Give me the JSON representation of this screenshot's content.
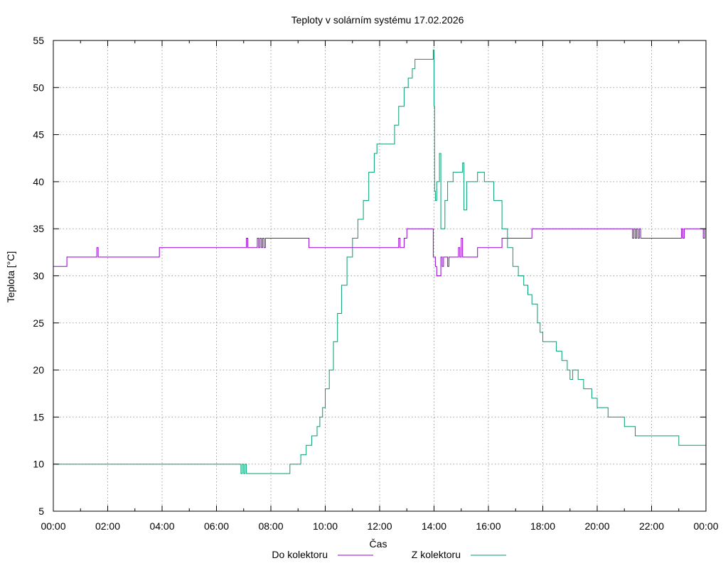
{
  "chart_data": {
    "type": "line",
    "title": "Teploty v solárním systému 17.02.2026",
    "xlabel": "Čas",
    "ylabel": "Teplota [°C]",
    "x_unit": "hours",
    "xlim": [
      0,
      24
    ],
    "ylim": [
      5,
      55
    ],
    "x_ticks": [
      0,
      2,
      4,
      6,
      8,
      10,
      12,
      14,
      16,
      18,
      20,
      22,
      24
    ],
    "x_tick_labels": [
      "00:00",
      "02:00",
      "04:00",
      "06:00",
      "08:00",
      "10:00",
      "12:00",
      "14:00",
      "16:00",
      "18:00",
      "20:00",
      "22:00",
      "00:00"
    ],
    "y_ticks": [
      5,
      10,
      15,
      20,
      25,
      30,
      35,
      40,
      45,
      50,
      55
    ],
    "y_tick_labels": [
      "5",
      "10",
      "15",
      "20",
      "25",
      "30",
      "35",
      "40",
      "45",
      "50",
      "55"
    ],
    "grid": true,
    "legend_position": "bottom",
    "series": [
      {
        "name": "Do kolektoru",
        "color": "#9400d3",
        "points": [
          [
            0,
            31
          ],
          [
            0.5,
            31
          ],
          [
            0.5,
            32
          ],
          [
            1.6,
            32
          ],
          [
            1.6,
            33
          ],
          [
            1.65,
            32
          ],
          [
            3.9,
            32
          ],
          [
            3.9,
            33
          ],
          [
            7.1,
            33
          ],
          [
            7.1,
            34
          ],
          [
            7.15,
            33
          ],
          [
            7.5,
            33
          ],
          [
            7.5,
            34
          ],
          [
            7.55,
            33
          ],
          [
            7.6,
            34
          ],
          [
            7.65,
            33
          ],
          [
            7.7,
            34
          ],
          [
            7.75,
            33
          ],
          [
            7.8,
            34
          ],
          [
            9.4,
            34
          ],
          [
            9.4,
            33
          ],
          [
            12.7,
            33
          ],
          [
            12.7,
            34
          ],
          [
            12.75,
            33
          ],
          [
            12.9,
            33
          ],
          [
            12.9,
            34
          ],
          [
            13.0,
            34
          ],
          [
            13.0,
            35
          ],
          [
            13.95,
            35
          ],
          [
            13.97,
            32
          ],
          [
            14.05,
            31
          ],
          [
            14.1,
            30
          ],
          [
            14.25,
            30
          ],
          [
            14.25,
            32
          ],
          [
            14.3,
            32
          ],
          [
            14.3,
            31
          ],
          [
            14.35,
            32
          ],
          [
            14.5,
            32
          ],
          [
            14.5,
            31
          ],
          [
            14.55,
            32
          ],
          [
            14.9,
            32
          ],
          [
            14.9,
            33
          ],
          [
            14.95,
            32
          ],
          [
            15.0,
            34
          ],
          [
            15.05,
            32
          ],
          [
            15.6,
            32
          ],
          [
            15.6,
            33
          ],
          [
            16.5,
            33
          ],
          [
            16.5,
            34
          ],
          [
            17.6,
            34
          ],
          [
            17.6,
            35
          ],
          [
            21.3,
            35
          ],
          [
            21.3,
            34
          ],
          [
            21.35,
            35
          ],
          [
            21.4,
            34
          ],
          [
            21.45,
            35
          ],
          [
            21.5,
            34
          ],
          [
            21.55,
            35
          ],
          [
            21.6,
            34
          ],
          [
            23.1,
            34
          ],
          [
            23.1,
            35
          ],
          [
            23.15,
            34
          ],
          [
            23.2,
            35
          ],
          [
            23.9,
            35
          ],
          [
            23.9,
            34
          ],
          [
            23.95,
            35
          ],
          [
            24,
            34
          ]
        ]
      },
      {
        "name": "Z kolektoru",
        "color": "#009e73",
        "points": [
          [
            0,
            10
          ],
          [
            6.9,
            10
          ],
          [
            6.9,
            9
          ],
          [
            6.95,
            10
          ],
          [
            7.0,
            9
          ],
          [
            7.05,
            10
          ],
          [
            7.1,
            9
          ],
          [
            8.7,
            9
          ],
          [
            8.7,
            10
          ],
          [
            9.1,
            10
          ],
          [
            9.1,
            11
          ],
          [
            9.3,
            11
          ],
          [
            9.3,
            12
          ],
          [
            9.5,
            13
          ],
          [
            9.7,
            14
          ],
          [
            9.8,
            15
          ],
          [
            9.9,
            16
          ],
          [
            10.0,
            18
          ],
          [
            10.15,
            20
          ],
          [
            10.3,
            23
          ],
          [
            10.45,
            26
          ],
          [
            10.6,
            29
          ],
          [
            10.8,
            32
          ],
          [
            11.0,
            34
          ],
          [
            11.2,
            36
          ],
          [
            11.4,
            38
          ],
          [
            11.6,
            41
          ],
          [
            11.8,
            43
          ],
          [
            11.9,
            44
          ],
          [
            12.4,
            44
          ],
          [
            12.55,
            46
          ],
          [
            12.7,
            48
          ],
          [
            12.9,
            50
          ],
          [
            13.05,
            51
          ],
          [
            13.2,
            52
          ],
          [
            13.3,
            53
          ],
          [
            13.95,
            53
          ],
          [
            13.97,
            54
          ],
          [
            14.0,
            48
          ],
          [
            14.02,
            39
          ],
          [
            14.05,
            38
          ],
          [
            14.1,
            40
          ],
          [
            14.2,
            43
          ],
          [
            14.25,
            35
          ],
          [
            14.4,
            38
          ],
          [
            14.5,
            40
          ],
          [
            14.7,
            41
          ],
          [
            15.0,
            41
          ],
          [
            15.05,
            42
          ],
          [
            15.1,
            37
          ],
          [
            15.2,
            40
          ],
          [
            15.3,
            40
          ],
          [
            15.5,
            40
          ],
          [
            15.6,
            41
          ],
          [
            15.7,
            41
          ],
          [
            15.85,
            40
          ],
          [
            16.0,
            40
          ],
          [
            16.2,
            38
          ],
          [
            16.5,
            35
          ],
          [
            16.7,
            33
          ],
          [
            16.9,
            31
          ],
          [
            17.1,
            30
          ],
          [
            17.3,
            29
          ],
          [
            17.45,
            28
          ],
          [
            17.6,
            27
          ],
          [
            17.8,
            25
          ],
          [
            17.9,
            24
          ],
          [
            18.0,
            23
          ],
          [
            18.4,
            23
          ],
          [
            18.5,
            22
          ],
          [
            18.7,
            21
          ],
          [
            18.9,
            20
          ],
          [
            19.0,
            19
          ],
          [
            19.1,
            20
          ],
          [
            19.3,
            19
          ],
          [
            19.5,
            18
          ],
          [
            19.8,
            17
          ],
          [
            20.0,
            16
          ],
          [
            20.4,
            16
          ],
          [
            20.4,
            15
          ],
          [
            20.9,
            15
          ],
          [
            21.0,
            14
          ],
          [
            21.4,
            14
          ],
          [
            21.4,
            13
          ],
          [
            22.9,
            13
          ],
          [
            23.0,
            12
          ],
          [
            24,
            12
          ]
        ]
      }
    ]
  }
}
